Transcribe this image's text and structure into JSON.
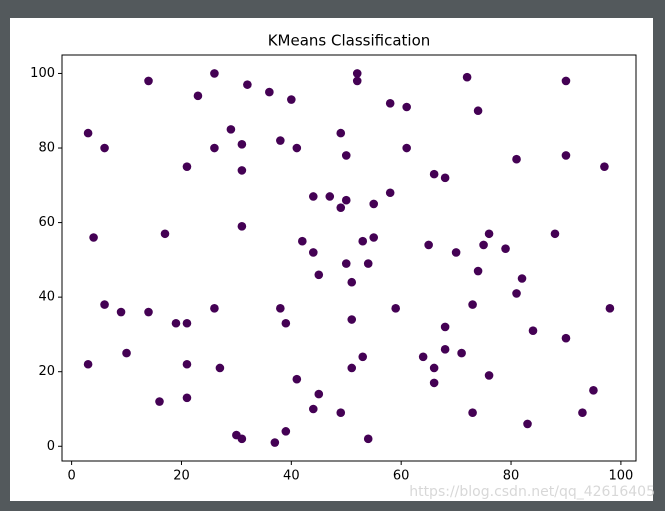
{
  "chart_data": {
    "type": "scatter",
    "title": "KMeans Classification",
    "x": [
      3,
      6,
      14,
      26,
      23,
      32,
      36,
      40,
      52,
      52,
      72,
      90,
      74,
      58,
      61,
      29,
      31,
      26,
      38,
      41,
      49,
      50,
      61,
      81,
      90,
      97,
      21,
      31,
      66,
      68,
      58,
      44,
      47,
      50,
      49,
      55,
      31,
      17,
      4,
      42,
      53,
      55,
      76,
      75,
      65,
      88,
      79,
      70,
      44,
      50,
      54,
      45,
      74,
      51,
      82,
      81,
      6,
      9,
      14,
      26,
      38,
      59,
      73,
      98,
      19,
      21,
      39,
      51,
      68,
      84,
      90,
      10,
      68,
      71,
      64,
      53,
      3,
      21,
      27,
      51,
      66,
      76,
      41,
      66,
      95,
      21,
      45,
      16,
      44,
      49,
      73,
      93,
      83,
      39,
      30,
      31,
      54,
      37
    ],
    "values": [
      84,
      80,
      98,
      100,
      94,
      97,
      95,
      93,
      100,
      98,
      99,
      98,
      90,
      92,
      91,
      85,
      81,
      80,
      82,
      80,
      84,
      78,
      80,
      77,
      78,
      75,
      75,
      74,
      73,
      72,
      68,
      67,
      67,
      66,
      64,
      65,
      59,
      57,
      56,
      55,
      55,
      56,
      57,
      54,
      54,
      57,
      53,
      52,
      52,
      49,
      49,
      46,
      47,
      44,
      45,
      41,
      38,
      36,
      36,
      37,
      37,
      37,
      38,
      37,
      33,
      33,
      33,
      34,
      32,
      31,
      29,
      25,
      26,
      25,
      24,
      24,
      22,
      22,
      21,
      21,
      21,
      19,
      18,
      17,
      15,
      13,
      14,
      12,
      10,
      9,
      9,
      9,
      6,
      4,
      3,
      2,
      2,
      1
    ],
    "color": "#440154",
    "xlim": [
      -1.75,
      102.75
    ],
    "xticks": [
      0,
      20,
      40,
      60,
      80,
      100
    ],
    "ylim": [
      -3.95,
      104.95
    ],
    "yticks": [
      0,
      20,
      40,
      60,
      80,
      100
    ]
  },
  "watermark": "https://blog.csdn.net/qq_42616405"
}
